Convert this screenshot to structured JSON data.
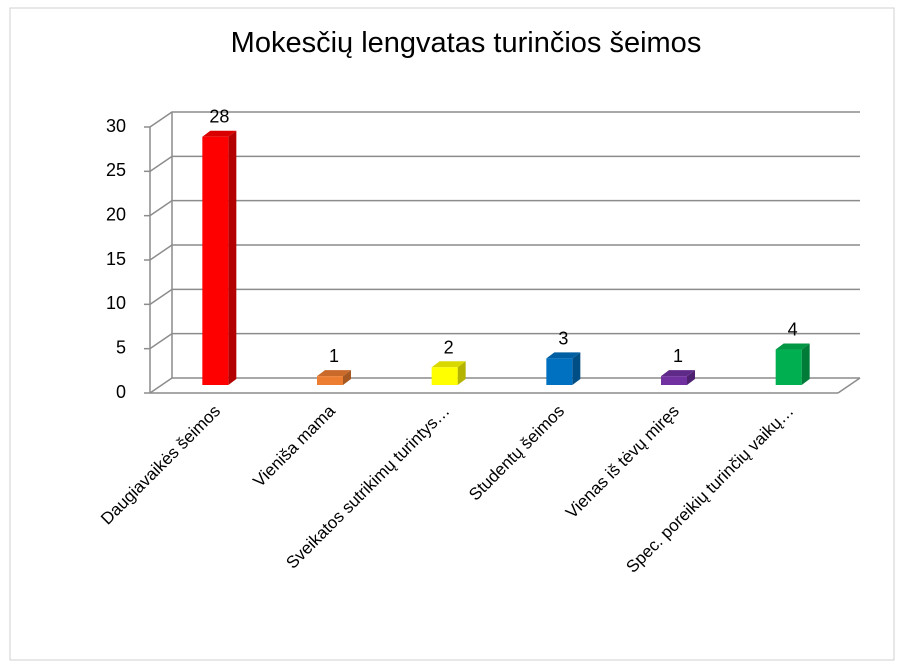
{
  "chart_data": {
    "type": "bar3d",
    "title": "Mokesčių lengvatas turinčios šeimos",
    "categories": [
      "Daugiavaikės šeimos",
      "Vienišа mama",
      "Sveikatos sutrikimų turintys…",
      "Studentų šeimos",
      "Vienas iš tėvų miręs",
      "Spec. poreikių turinčių vaikų…"
    ],
    "values": [
      28,
      1,
      2,
      3,
      1,
      4
    ],
    "colors": [
      "#ff0000",
      "#ed7d31",
      "#ffff00",
      "#0070c0",
      "#7030a0",
      "#00b050"
    ],
    "ylim": [
      0,
      30
    ],
    "yticks": [
      0,
      5,
      10,
      15,
      20,
      25,
      30
    ],
    "grid": true
  }
}
